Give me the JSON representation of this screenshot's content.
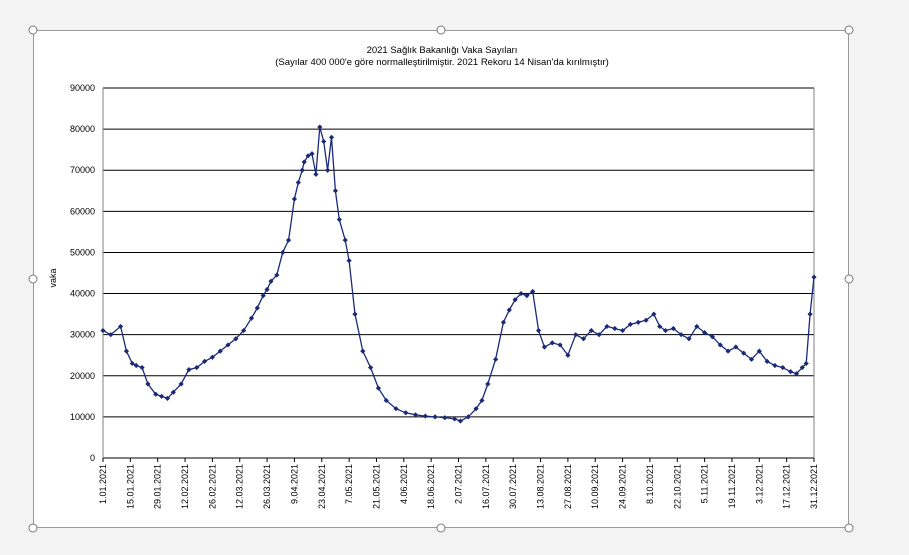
{
  "chart_data": {
    "type": "line",
    "title": "2021 Sağlık Bakanlığı Vaka Sayıları",
    "subtitle": "(Sayılar 400 000'e göre normalleştirilmiştir. 2021 Rekoru 14 Nisan'da kırılmıştır)",
    "xlabel": "",
    "ylabel": "vaka",
    "ylim": [
      0,
      90000
    ],
    "yticks": [
      "0",
      "10000",
      "20000",
      "30000",
      "40000",
      "50000",
      "60000",
      "70000",
      "80000",
      "90000"
    ],
    "xticks": [
      "1.01.2021",
      "15.01.2021",
      "29.01.2021",
      "12.02.2021",
      "26.02.2021",
      "12.03.2021",
      "26.03.2021",
      "9.04.2021",
      "23.04.2021",
      "7.05.2021",
      "21.05.2021",
      "4.06.2021",
      "18.06.2021",
      "2.07.2021",
      "16.07.2021",
      "30.07.2021",
      "13.08.2021",
      "27.08.2021",
      "10.09.2021",
      "24.09.2021",
      "8.10.2021",
      "22.10.2021",
      "5.11.2021",
      "19.11.2021",
      "3.12.2021",
      "17.12.2021",
      "31.12.2021"
    ],
    "grid": "horizontal",
    "line_color": "#1a2a78",
    "series": [
      {
        "x": [
          "1.01.2021",
          "5.01.2021",
          "10.01.2021",
          "13.01.2021",
          "16.01.2021",
          "18.01.2021",
          "21.01.2021",
          "24.01.2021",
          "28.01.2021",
          "31.01.2021",
          "3.02.2021",
          "6.02.2021",
          "10.02.2021",
          "14.02.2021",
          "18.02.2021",
          "22.02.2021",
          "26.02.2021",
          "2.03.2021",
          "6.03.2021",
          "10.03.2021",
          "14.03.2021",
          "18.03.2021",
          "21.03.2021",
          "24.03.2021",
          "26.03.2021",
          "28.03.2021",
          "31.03.2021",
          "3.04.2021",
          "6.04.2021",
          "9.04.2021",
          "11.04.2021",
          "13.04.2021",
          "14.04.2021",
          "16.04.2021",
          "18.04.2021",
          "20.04.2021",
          "22.04.2021",
          "24.04.2021",
          "26.04.2021",
          "28.04.2021",
          "30.04.2021",
          "2.05.2021",
          "5.05.2021",
          "7.05.2021",
          "10.05.2021",
          "14.05.2021",
          "18.05.2021",
          "22.05.2021",
          "26.05.2021",
          "31.05.2021",
          "5.06.2021",
          "10.06.2021",
          "15.06.2021",
          "20.06.2021",
          "25.06.2021",
          "30.06.2021",
          "3.07.2021",
          "7.07.2021",
          "11.07.2021",
          "14.07.2021",
          "17.07.2021",
          "21.07.2021",
          "25.07.2021",
          "28.07.2021",
          "31.07.2021",
          "3.08.2021",
          "6.08.2021",
          "9.08.2021",
          "12.08.2021",
          "15.08.2021",
          "19.08.2021",
          "23.08.2021",
          "27.08.2021",
          "31.08.2021",
          "4.09.2021",
          "8.09.2021",
          "12.09.2021",
          "16.09.2021",
          "20.09.2021",
          "24.09.2021",
          "28.09.2021",
          "2.10.2021",
          "6.10.2021",
          "10.10.2021",
          "13.10.2021",
          "16.10.2021",
          "20.10.2021",
          "24.10.2021",
          "28.10.2021",
          "1.11.2021",
          "5.11.2021",
          "9.11.2021",
          "13.11.2021",
          "17.11.2021",
          "21.11.2021",
          "25.11.2021",
          "29.11.2021",
          "3.12.2021",
          "7.12.2021",
          "11.12.2021",
          "15.12.2021",
          "19.12.2021",
          "22.12.2021",
          "25.12.2021",
          "27.12.2021",
          "29.12.2021",
          "31.12.2021"
        ],
        "y": [
          31000,
          30000,
          32000,
          26000,
          23000,
          22500,
          22000,
          18000,
          15500,
          15000,
          14500,
          16000,
          18000,
          21500,
          22000,
          23500,
          24500,
          26000,
          27500,
          29000,
          31000,
          34000,
          36500,
          39500,
          41000,
          43000,
          44500,
          50000,
          53000,
          63000,
          67000,
          70000,
          72000,
          73500,
          74000,
          69000,
          80500,
          77000,
          70000,
          78000,
          65000,
          58000,
          53000,
          48000,
          35000,
          26000,
          22000,
          17000,
          14000,
          12000,
          11000,
          10500,
          10200,
          10000,
          9800,
          9500,
          9000,
          10000,
          12000,
          14000,
          18000,
          24000,
          33000,
          36000,
          38500,
          40000,
          39500,
          40500,
          31000,
          27000,
          28000,
          27500,
          25000,
          30000,
          29000,
          31000,
          30000,
          32000,
          31500,
          31000,
          32500,
          33000,
          33500,
          35000,
          32000,
          31000,
          31500,
          30000,
          29000,
          32000,
          30500,
          29500,
          27500,
          26000,
          27000,
          25500,
          24000,
          26000,
          23500,
          22500,
          22000,
          21000,
          20500,
          22000,
          23000,
          35000,
          44000
        ]
      }
    ]
  }
}
